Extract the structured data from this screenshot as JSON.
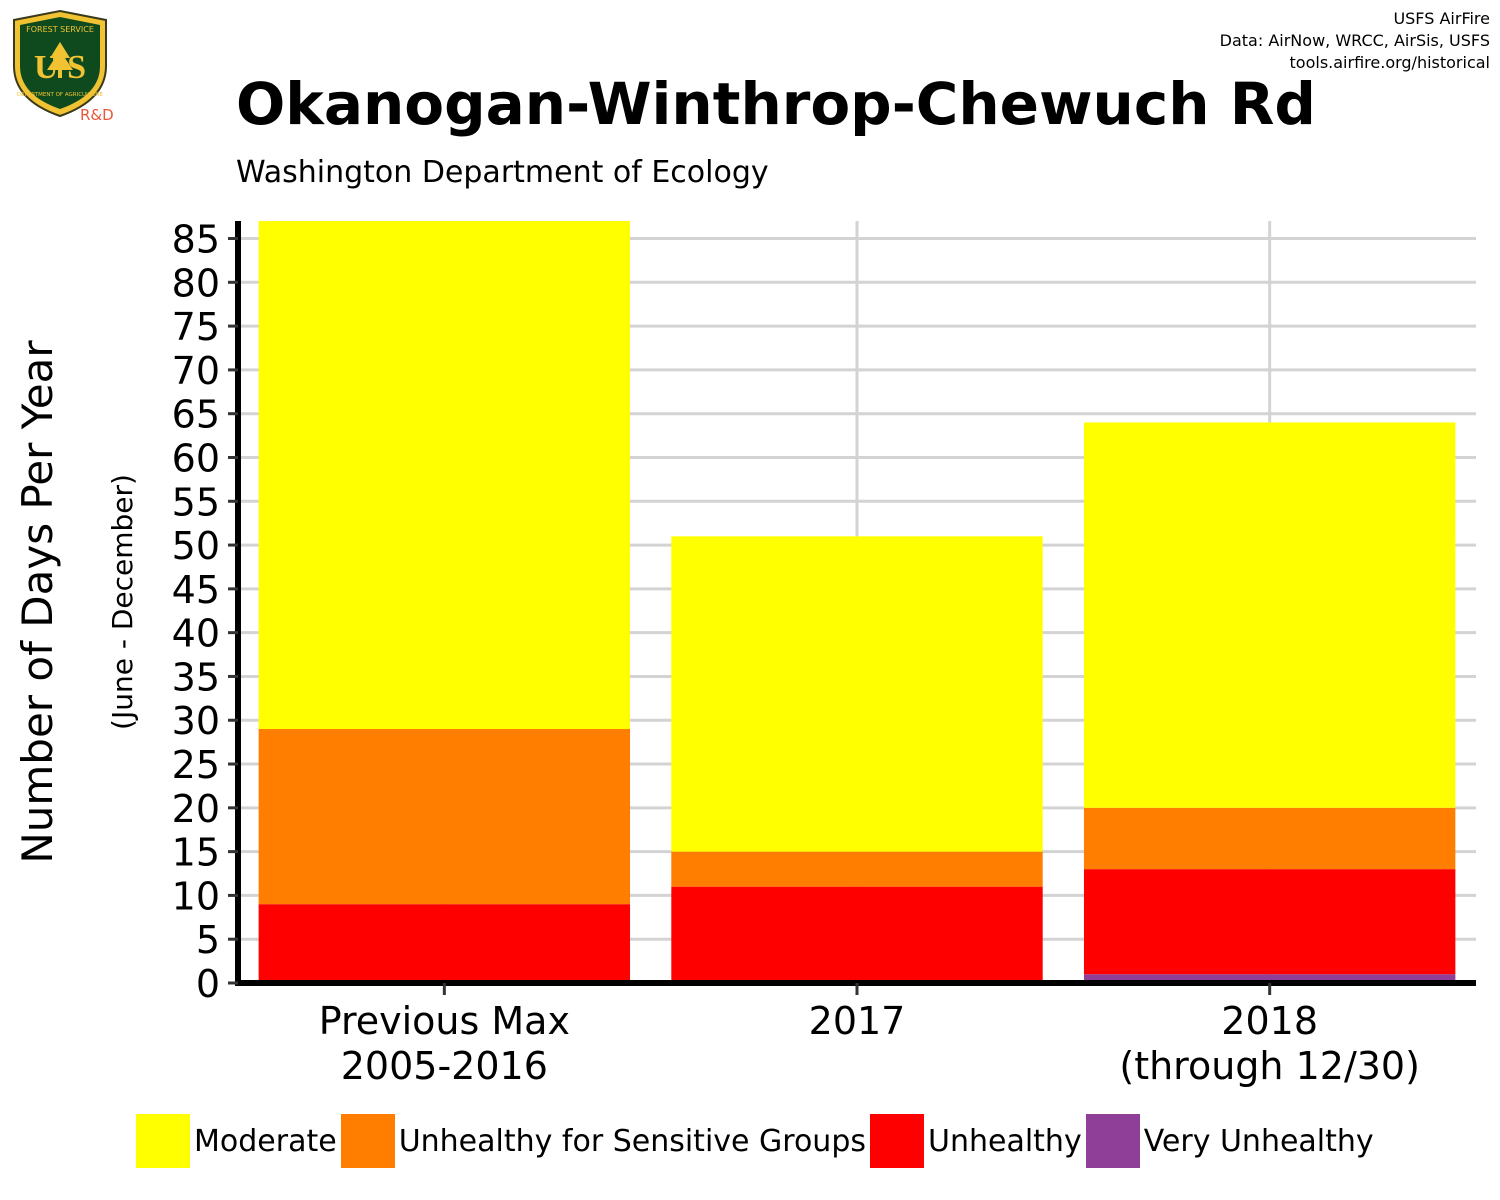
{
  "header": {
    "title": "Okanogan-Winthrop-Chewuch Rd",
    "subtitle": "Washington Department of Ecology",
    "credits": [
      "USFS AirFire",
      "Data: AirNow, WRCC, AirSis, USFS",
      "tools.airfire.org/historical"
    ]
  },
  "logo": {
    "icon": "forest-service-shield-icon",
    "text_top": "FOREST SERVICE",
    "text_main": "U S",
    "text_bottom": "DEPARTMENT OF AGRICULTURE",
    "badge": "R&D"
  },
  "colors": {
    "moderate": "#ffff00",
    "usg": "#ff7e00",
    "unhealthy": "#ff0000",
    "very_unhealthy": "#8f3f97",
    "grid": "#d3d3d3"
  },
  "chart_data": {
    "type": "bar",
    "stacked": true,
    "categories": [
      [
        "Previous Max",
        "2005-2016"
      ],
      [
        "2017"
      ],
      [
        "2018",
        "(through 12/30)"
      ]
    ],
    "series": [
      {
        "name": "Very Unhealthy",
        "color": "#8f3f97",
        "values": [
          0,
          0,
          1
        ]
      },
      {
        "name": "Unhealthy",
        "color": "#ff0000",
        "values": [
          9,
          11,
          12
        ]
      },
      {
        "name": "Unhealthy for Sensitive Groups",
        "color": "#ff7e00",
        "values": [
          20,
          4,
          7
        ]
      },
      {
        "name": "Moderate",
        "color": "#ffff00",
        "values": [
          58,
          36,
          44
        ]
      }
    ],
    "legend_order": [
      "Moderate",
      "Unhealthy for Sensitive Groups",
      "Unhealthy",
      "Very Unhealthy"
    ],
    "ylabel": "Number of Days Per Year",
    "ylabel_sub": "(June - December)",
    "ylim": [
      0,
      87
    ],
    "yticks": [
      0,
      5,
      10,
      15,
      20,
      25,
      30,
      35,
      40,
      45,
      50,
      55,
      60,
      65,
      70,
      75,
      80,
      85
    ],
    "grid": true,
    "legend_position": "bottom"
  }
}
